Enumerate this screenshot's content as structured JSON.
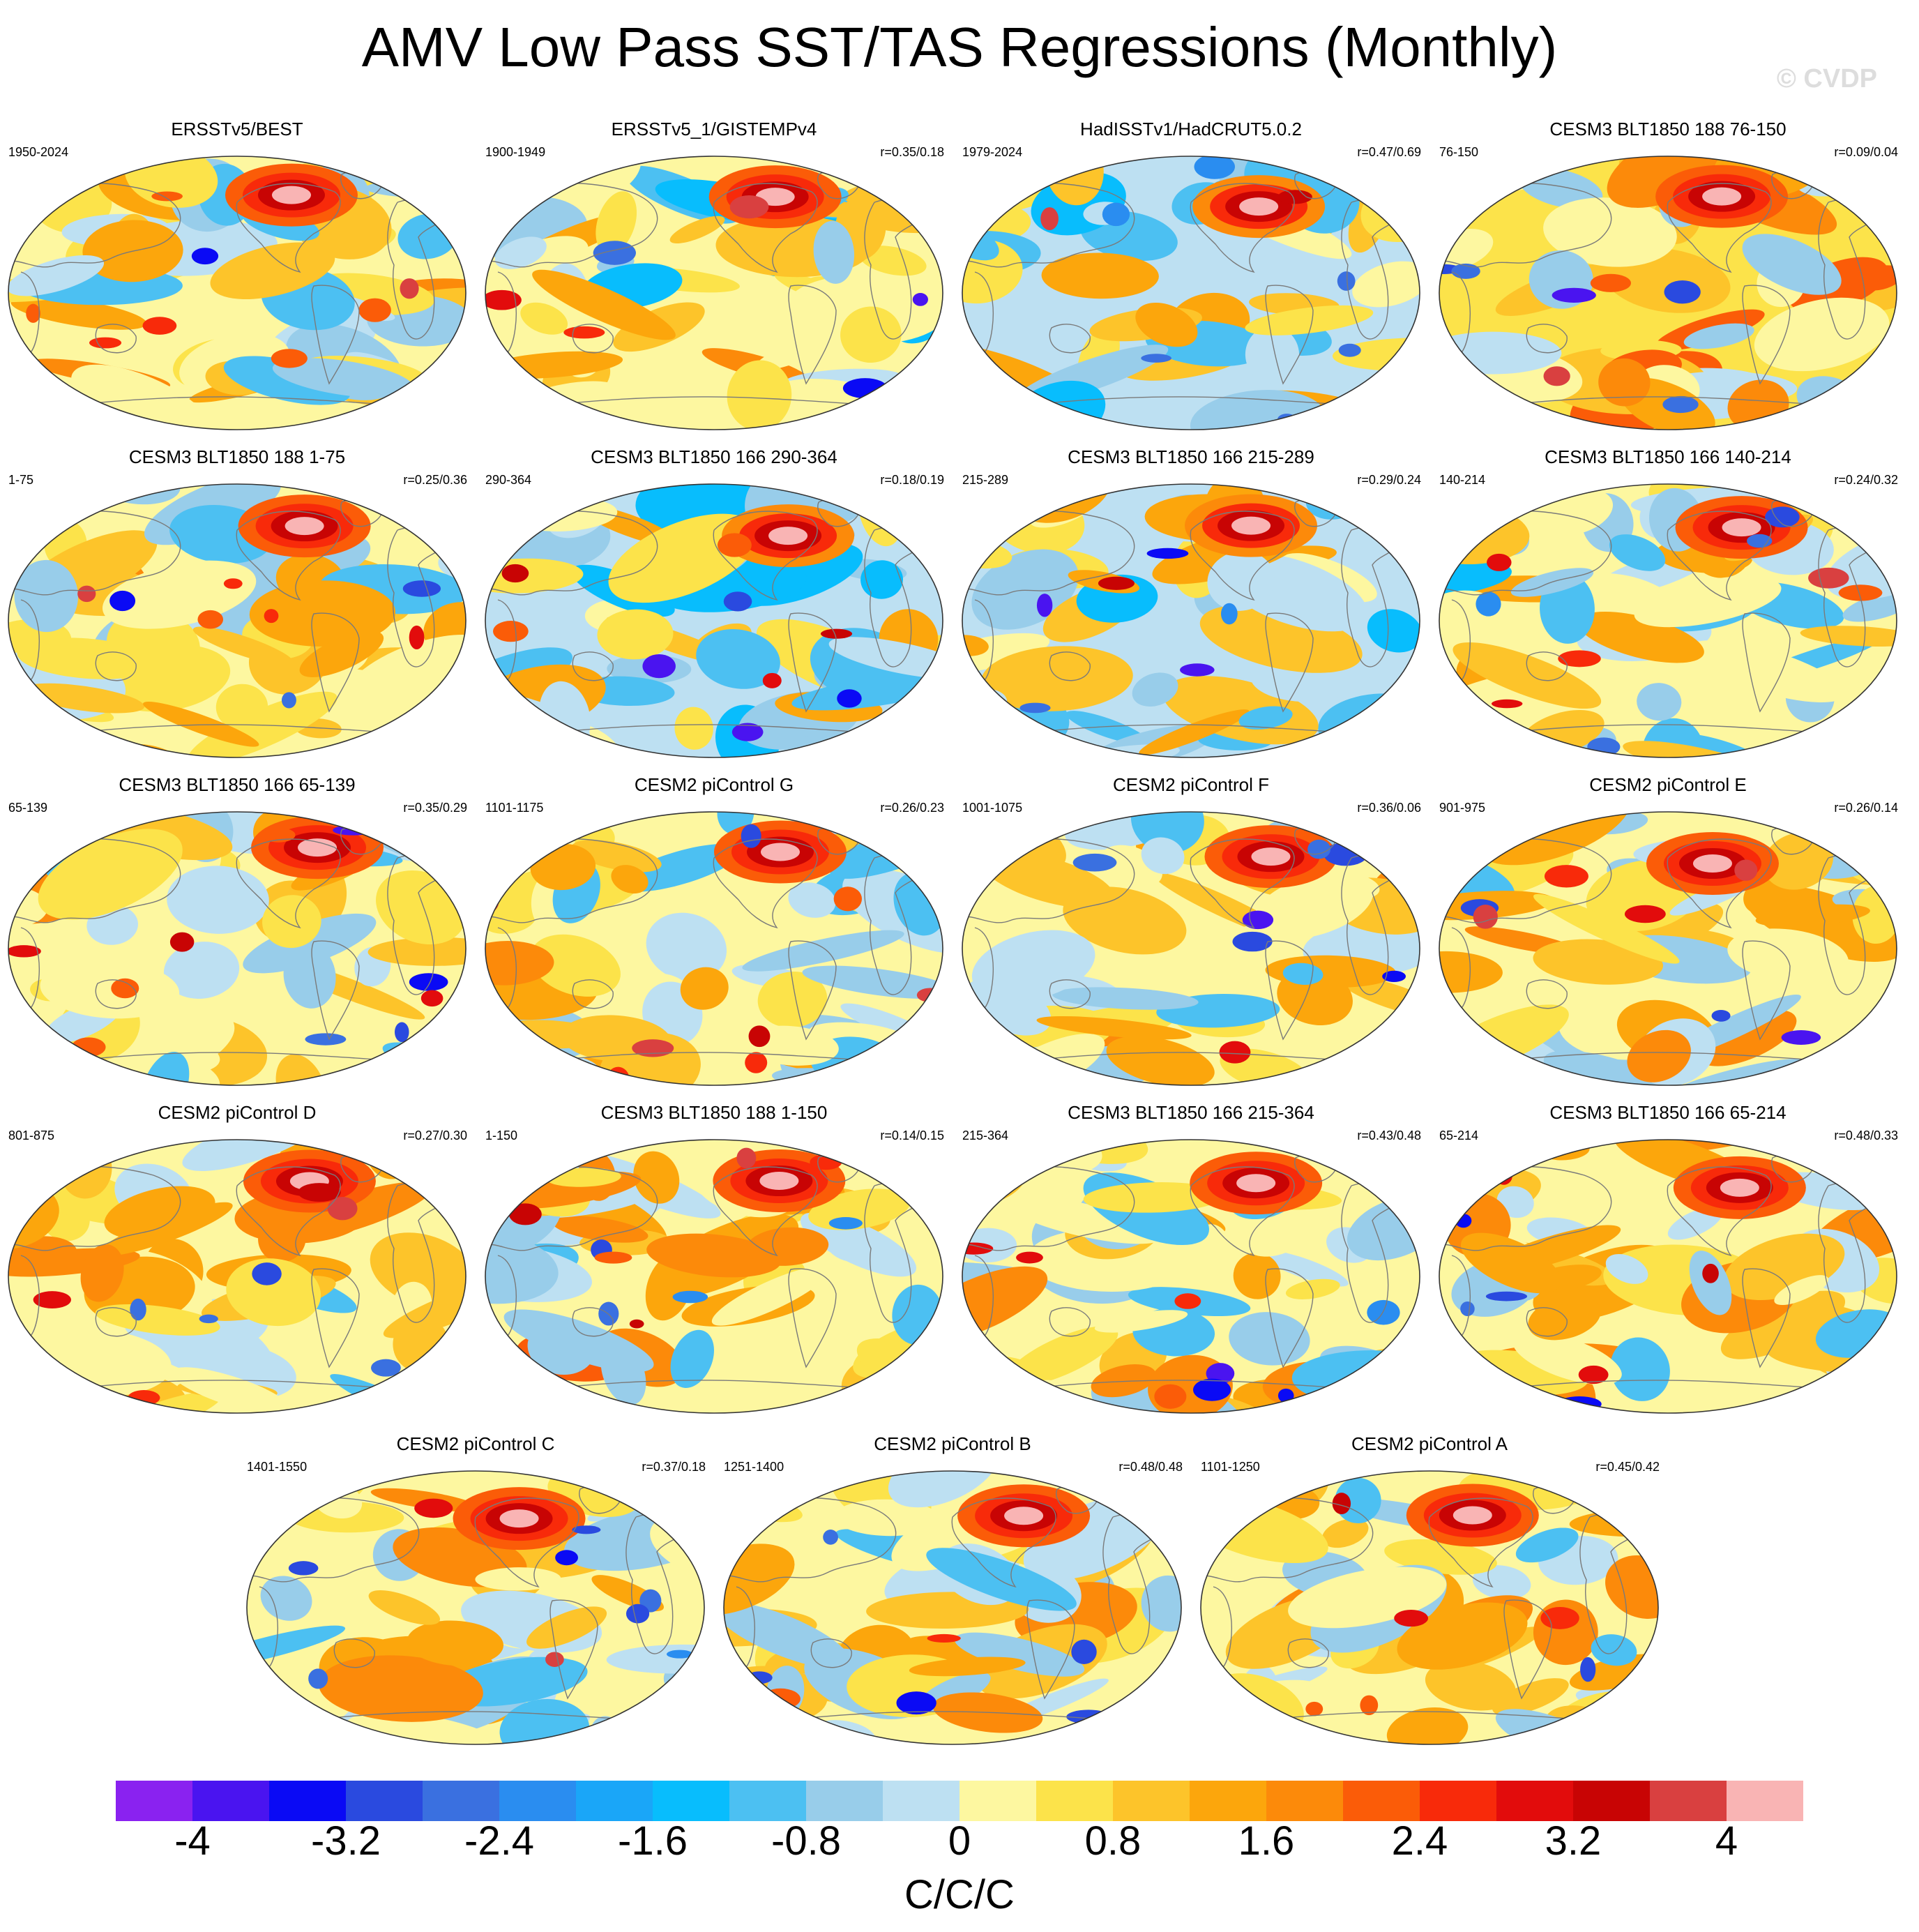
{
  "title": "AMV Low Pass SST/TAS Regressions (Monthly)",
  "watermark": "© CVDP",
  "panels": [
    {
      "title": "ERSSTv5/BEST",
      "years": "1950-2024",
      "corr": "",
      "seed": 11,
      "bias": 0.05
    },
    {
      "title": "ERSSTv5_1/GISTEMPv4",
      "years": "1900-1949",
      "corr": "r=0.35/0.18",
      "seed": 23,
      "bias": 0.0
    },
    {
      "title": "HadISSTv1/HadCRUT5.0.2",
      "years": "1979-2024",
      "corr": "r=0.47/0.69",
      "seed": 37,
      "bias": -0.1
    },
    {
      "title": "CESM3 BLT1850 188 76-150",
      "years": "76-150",
      "corr": "r=0.09/0.04",
      "seed": 41,
      "bias": 0.55
    },
    {
      "title": "CESM3 BLT1850 188 1-75",
      "years": "1-75",
      "corr": "r=0.25/0.36",
      "seed": 53,
      "bias": 0.35
    },
    {
      "title": "CESM3 BLT1850 166 290-364",
      "years": "290-364",
      "corr": "r=0.18/0.19",
      "seed": 67,
      "bias": -0.2
    },
    {
      "title": "CESM3 BLT1850 166 215-289",
      "years": "215-289",
      "corr": "r=0.29/0.24",
      "seed": 71,
      "bias": -0.05
    },
    {
      "title": "CESM3 BLT1850 166 140-214",
      "years": "140-214",
      "corr": "r=0.24/0.32",
      "seed": 83,
      "bias": 0.05
    },
    {
      "title": "CESM3 BLT1850 166 65-139",
      "years": "65-139",
      "corr": "r=0.35/0.29",
      "seed": 97,
      "bias": 0.1
    },
    {
      "title": "CESM2 piControl G",
      "years": "1101-1175",
      "corr": "r=0.26/0.23",
      "seed": 101,
      "bias": 0.1
    },
    {
      "title": "CESM2 piControl F",
      "years": "1001-1075",
      "corr": "r=0.36/0.06",
      "seed": 113,
      "bias": 0.2
    },
    {
      "title": "CESM2 piControl E",
      "years": "901-975",
      "corr": "r=0.26/0.14",
      "seed": 127,
      "bias": 0.3
    },
    {
      "title": "CESM2 piControl D",
      "years": "801-875",
      "corr": "r=0.27/0.30",
      "seed": 131,
      "bias": 0.3
    },
    {
      "title": "CESM3 BLT1850 188 1-150",
      "years": "1-150",
      "corr": "r=0.14/0.15",
      "seed": 149,
      "bias": 0.35
    },
    {
      "title": "CESM3 BLT1850 166 215-364",
      "years": "215-364",
      "corr": "r=0.43/0.48",
      "seed": 151,
      "bias": 0.1
    },
    {
      "title": "CESM3 BLT1850 166 65-214",
      "years": "65-214",
      "corr": "r=0.48/0.33",
      "seed": 163,
      "bias": 0.3
    },
    {
      "title": "CESM2 piControl C",
      "years": "1401-1550",
      "corr": "r=0.37/0.18",
      "seed": 173,
      "bias": 0.35
    },
    {
      "title": "CESM2 piControl B",
      "years": "1251-1400",
      "corr": "r=0.48/0.48",
      "seed": 181,
      "bias": 0.15
    },
    {
      "title": "CESM2 piControl A",
      "years": "1101-1250",
      "corr": "r=0.45/0.42",
      "seed": 191,
      "bias": 0.25
    }
  ],
  "colorbar": {
    "colors": [
      "#8a22f0",
      "#4a14f0",
      "#0a0af5",
      "#2a4adf",
      "#3a70e0",
      "#2a8df0",
      "#1aa6f8",
      "#08bdfd",
      "#4cc0f2",
      "#98cdea",
      "#bde0f2",
      "#fdf7a0",
      "#fce34a",
      "#fdc42a",
      "#fca60c",
      "#fc8a0a",
      "#fb5c08",
      "#f82a0a",
      "#e20c0c",
      "#c80404",
      "#d94040",
      "#f9b4b4"
    ],
    "levels": [
      -4,
      -3.6,
      -3.2,
      -2.8,
      -2.4,
      -2,
      -1.6,
      -1.2,
      -0.8,
      -0.4,
      0,
      0.4,
      0.8,
      1.2,
      1.6,
      2,
      2.4,
      2.8,
      3.2,
      3.6,
      4
    ],
    "tick_labels": [
      {
        "label": "-4",
        "value": -4
      },
      {
        "label": "-3.2",
        "value": -3.2
      },
      {
        "label": "-2.4",
        "value": -2.4
      },
      {
        "label": "-1.6",
        "value": -1.6
      },
      {
        "label": "-0.8",
        "value": -0.8
      },
      {
        "label": "0",
        "value": 0
      },
      {
        "label": "0.8",
        "value": 0.8
      },
      {
        "label": "1.6",
        "value": 1.6
      },
      {
        "label": "2.4",
        "value": 2.4
      },
      {
        "label": "3.2",
        "value": 3.2
      },
      {
        "label": "4",
        "value": 4
      }
    ],
    "units": "C/C/C"
  }
}
